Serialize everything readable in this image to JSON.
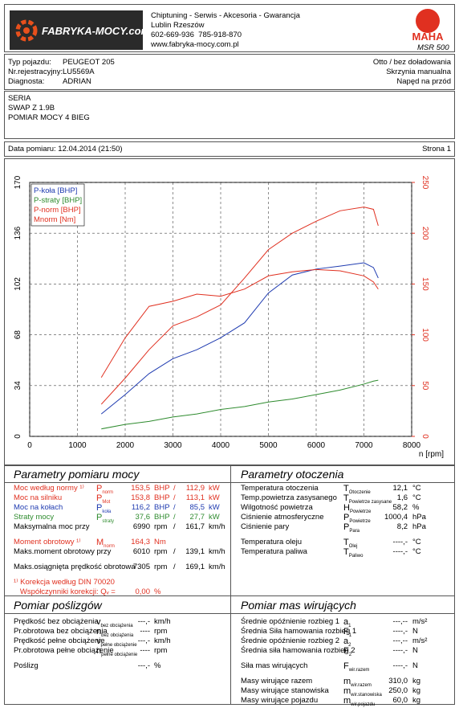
{
  "header": {
    "company": "FABRYKA-MOCY.com",
    "lines": [
      "Chiptuning - Serwis - Akcesoria - Gwarancja",
      "Lublin Rzeszów",
      "602-669-936  785-918-870",
      "www.fabryka-mocy.com.pl"
    ],
    "brand": "MAHA",
    "model": "MSR 500"
  },
  "vehicle": {
    "rows": [
      [
        "Typ pojazdu:",
        "PEUGEOT 205"
      ],
      [
        "Nr.rejestracyjny:",
        "LU5569A"
      ],
      [
        "Diagnosta:",
        "ADRIAN"
      ]
    ],
    "right": [
      "Otto / bez doładowania",
      "Skrzynia manualna",
      "Napęd na przód"
    ]
  },
  "series_block": [
    "SERIA",
    "SWAP Z 1.9B",
    "POMIAR MOCY 4 BIEG"
  ],
  "date": {
    "label": "Data pomiaru: 12.04.2014 (21:50)",
    "page": "Strona 1"
  },
  "chart_data": {
    "type": "line",
    "x_label": "n [rpm]",
    "x": [
      1500,
      2000,
      2500,
      3000,
      3500,
      4000,
      4500,
      5000,
      5500,
      6000,
      6500,
      7000,
      7200,
      7300
    ],
    "series": [
      {
        "name": "P-koła [BHP]",
        "color": "#1f3bb0",
        "values": [
          15,
          28,
          42,
          52,
          58,
          66,
          76,
          96,
          108,
          112,
          114,
          116.2,
          113,
          106
        ]
      },
      {
        "name": "P-straty [BHP]",
        "color": "#2e8b2e",
        "values": [
          5,
          8,
          10,
          13,
          15,
          18,
          20,
          23,
          25,
          28,
          31,
          35,
          37,
          37.6
        ]
      },
      {
        "name": "P-norm [BHP]",
        "color": "#e03020",
        "values": [
          21.5,
          39,
          58,
          74,
          80,
          88,
          106,
          125,
          136,
          144,
          151,
          153.5,
          152,
          141
        ]
      },
      {
        "name": "Mnorm [Nm]",
        "color": "#e03020",
        "axis": "y2",
        "values": [
          58,
          97,
          128,
          133,
          140,
          138,
          145,
          158,
          162,
          164.3,
          163,
          158,
          152,
          145
        ]
      }
    ],
    "xlim": [
      0,
      8000
    ],
    "xticks": [
      0,
      1000,
      2000,
      3000,
      4000,
      5000,
      6000,
      7000,
      8000
    ],
    "ylim": [
      0,
      170
    ],
    "yticks": [
      0,
      34,
      68,
      102,
      136,
      170
    ],
    "y2lim": [
      0,
      250
    ],
    "y2ticks": [
      0,
      50,
      100,
      150,
      200,
      250
    ],
    "y2color": "#e03020",
    "grid": true,
    "legend": "top-left"
  },
  "measurement": {
    "title": "Parametry pomiaru mocy",
    "groups": [
      [
        {
          "label": "Moc według normy ¹⁾",
          "sym": "P",
          "sub": "norm",
          "v1": "153,5",
          "u1": "BHP",
          "sep": "/",
          "v2": "112,9",
          "u2": "kW",
          "color": "#e03020"
        },
        {
          "label": "Moc na silniku",
          "sym": "P",
          "sub": "Mot",
          "v1": "153,8",
          "u1": "BHP",
          "sep": "/",
          "v2": "113,1",
          "u2": "kW",
          "color": "#e03020"
        },
        {
          "label": "Moc na kołach",
          "sym": "P",
          "sub": "koła",
          "v1": "116,2",
          "u1": "BHP",
          "sep": "/",
          "v2": "85,5",
          "u2": "kW",
          "color": "#1f3bb0"
        },
        {
          "label": "Straty mocy",
          "sym": "P",
          "sub": "straty",
          "v1": "37,6",
          "u1": "BHP",
          "sep": "/",
          "v2": "27,7",
          "u2": "kW",
          "color": "#2e8b2e"
        },
        {
          "label": "Maksymalna moc przy",
          "v1": "6990",
          "u1": "rpm",
          "sep": "/",
          "v2": "161,7",
          "u2": "km/h"
        }
      ],
      [
        {
          "label": "Moment obrotowy ¹⁾",
          "sym": "M",
          "sub": "norm",
          "v1": "164,3",
          "u1": "Nm",
          "color": "#e03020"
        },
        {
          "label": "Maks.moment obrotowy przy",
          "v1": "6010",
          "u1": "rpm",
          "sep": "/",
          "v2": "139,1",
          "u2": "km/h"
        }
      ],
      [
        {
          "label": "Maks.osiągnięta prędkość obrotowa",
          "v1": "7305",
          "u1": "rpm",
          "sep": "/",
          "v2": "169,1",
          "u2": "km/h"
        }
      ],
      [
        {
          "label": "¹⁾ Korekcja według DIN 70020",
          "color": "#e03020"
        },
        {
          "label": "   Współczynniki korekcji: Qᵥ =",
          "v1": "0,00",
          "u1": "%",
          "color": "#e03020"
        }
      ]
    ]
  },
  "environment": {
    "title": "Parametry otoczenia",
    "groups": [
      [
        {
          "label": "Temperatura otoczenia",
          "sym": "T",
          "sub": "Otoczenie",
          "v1": "12,1",
          "u1": "°C"
        },
        {
          "label": "Temp.powietrza zasysanego",
          "sym": "T",
          "sub": "Powietrze zasysane",
          "v1": "1,6",
          "u1": "°C"
        },
        {
          "label": "Wilgotność powietrza",
          "sym": "H",
          "sub": "Powietrze",
          "v1": "58,2",
          "u1": "%"
        },
        {
          "label": "Ciśnienie atmosferyczne",
          "sym": "P",
          "sub": "Powietrze",
          "v1": "1000,4",
          "u1": "hPa"
        },
        {
          "label": "Ciśnienie pary",
          "sym": "P",
          "sub": "Para",
          "v1": "8,2",
          "u1": "hPa"
        }
      ],
      [
        {
          "label": "Temperatura oleju",
          "sym": "T",
          "sub": "Olej",
          "v1": "----,-",
          "u1": "°C"
        },
        {
          "label": "Temperatura paliwa",
          "sym": "T",
          "sub": "Paliwo",
          "v1": "----,-",
          "u1": "°C"
        }
      ]
    ]
  },
  "slip": {
    "title": "Pomiar poślizgów",
    "groups": [
      [
        {
          "label": "Prędkość bez obciążenia",
          "sym": "v",
          "sub": "bez obciążenia",
          "v1": "---,-",
          "u1": "km/h"
        },
        {
          "label": "Pr.obrotowa bez obciążenia",
          "sym": "n",
          "sub": "bez obciążenia",
          "v1": "----",
          "u1": "rpm"
        },
        {
          "label": "Prędkość pełne obciążenie",
          "sym": "v",
          "sub": "pełne obciążenie",
          "v1": "---,-",
          "u1": "km/h"
        },
        {
          "label": "Pr.obrotowa pełne obciążenie",
          "sym": "n",
          "sub": "pełne obciążenie",
          "v1": "----",
          "u1": "rpm"
        }
      ],
      [
        {
          "label": "Poślizg",
          "v1": "---,-",
          "u1": "%"
        }
      ]
    ]
  },
  "masses": {
    "title": "Pomiar mas wirujących",
    "groups": [
      [
        {
          "label": "Średnie opóźnienie rozbieg 1",
          "sym": "a",
          "sub": "1",
          "v1": "---,--",
          "u1": "m/s²"
        },
        {
          "label": "Średnia Siła hamowania rozbieg 1",
          "sym": "F",
          "sub": "1",
          "v1": "----,-",
          "u1": "N"
        },
        {
          "label": "Średnie opóźnienie rozbieg 2",
          "sym": "a",
          "sub": "2",
          "v1": "---,--",
          "u1": "m/s²"
        },
        {
          "label": "Średnia siła hamowania rozbieg 2",
          "sym": "F",
          "sub": "2",
          "v1": "----,-",
          "u1": "N"
        }
      ],
      [
        {
          "label": "Siła mas wirujących",
          "sym": "F",
          "sub": "wir.razem",
          "v1": "----,-",
          "u1": "N"
        }
      ],
      [
        {
          "label": "Masy wirujące razem",
          "sym": "m",
          "sub": "wir.razem",
          "v1": "310,0",
          "u1": "kg"
        },
        {
          "label": "Masy wirujące stanowiska",
          "sym": "m",
          "sub": "wir.stanowiska",
          "v1": "250,0",
          "u1": "kg"
        },
        {
          "label": "Masy wirujące pojazdu",
          "sym": "m",
          "sub": "wir.pojazdu",
          "v1": "60,0",
          "u1": "kg"
        }
      ]
    ]
  }
}
